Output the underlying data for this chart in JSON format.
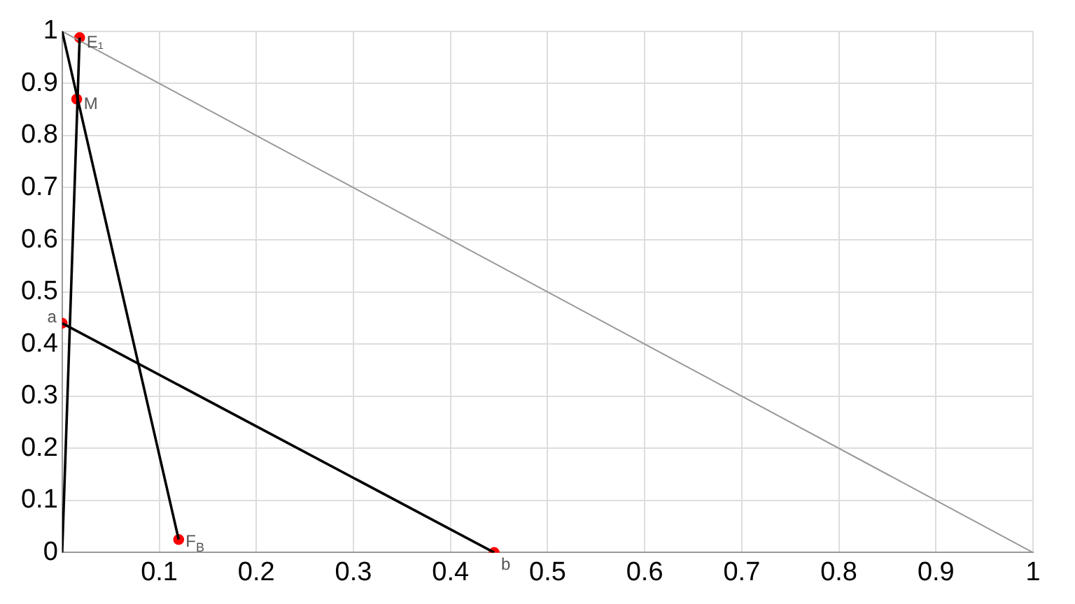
{
  "chart_data": {
    "type": "line",
    "xlim": [
      0,
      1
    ],
    "ylim": [
      0,
      1
    ],
    "xticks": [
      0.1,
      0.2,
      0.3,
      0.4,
      0.5,
      0.6,
      0.7,
      0.8,
      0.9,
      1
    ],
    "yticks": [
      0,
      0.1,
      0.2,
      0.3,
      0.4,
      0.5,
      0.6,
      0.7,
      0.8,
      0.9,
      1
    ],
    "grid": true,
    "legend": false,
    "series": [
      {
        "type": "line",
        "color": "#000000",
        "marker": "none",
        "x": [
          0,
          0.018
        ],
        "values": [
          0,
          0.988
        ]
      },
      {
        "type": "line",
        "color": "#000000",
        "marker": "none",
        "x": [
          0,
          0.12
        ],
        "values": [
          1,
          0.025
        ]
      },
      {
        "type": "line",
        "color": "#000000",
        "marker": "none",
        "x": [
          0,
          0.445
        ],
        "values": [
          0.44,
          0
        ]
      },
      {
        "type": "line",
        "color": "#999999",
        "marker": "none",
        "x": [
          0,
          1
        ],
        "values": [
          1,
          0
        ]
      },
      {
        "type": "scatter",
        "color": "#ff0000",
        "marker": "circle",
        "x": [
          0.018,
          0.015,
          0.12,
          0,
          0.445
        ],
        "values": [
          0.988,
          0.87,
          0.025,
          0.44,
          0
        ]
      }
    ],
    "annotations": [
      {
        "text": "E₁",
        "x": 0.018,
        "y": 0.988
      },
      {
        "text": "M",
        "x": 0.015,
        "y": 0.87
      },
      {
        "text": "F$_{B}$",
        "x": 0.12,
        "y": 0.025
      },
      {
        "text": "a",
        "x": 0,
        "y": 0.44
      },
      {
        "text": "b",
        "x": 0.445,
        "y": 0
      }
    ]
  }
}
